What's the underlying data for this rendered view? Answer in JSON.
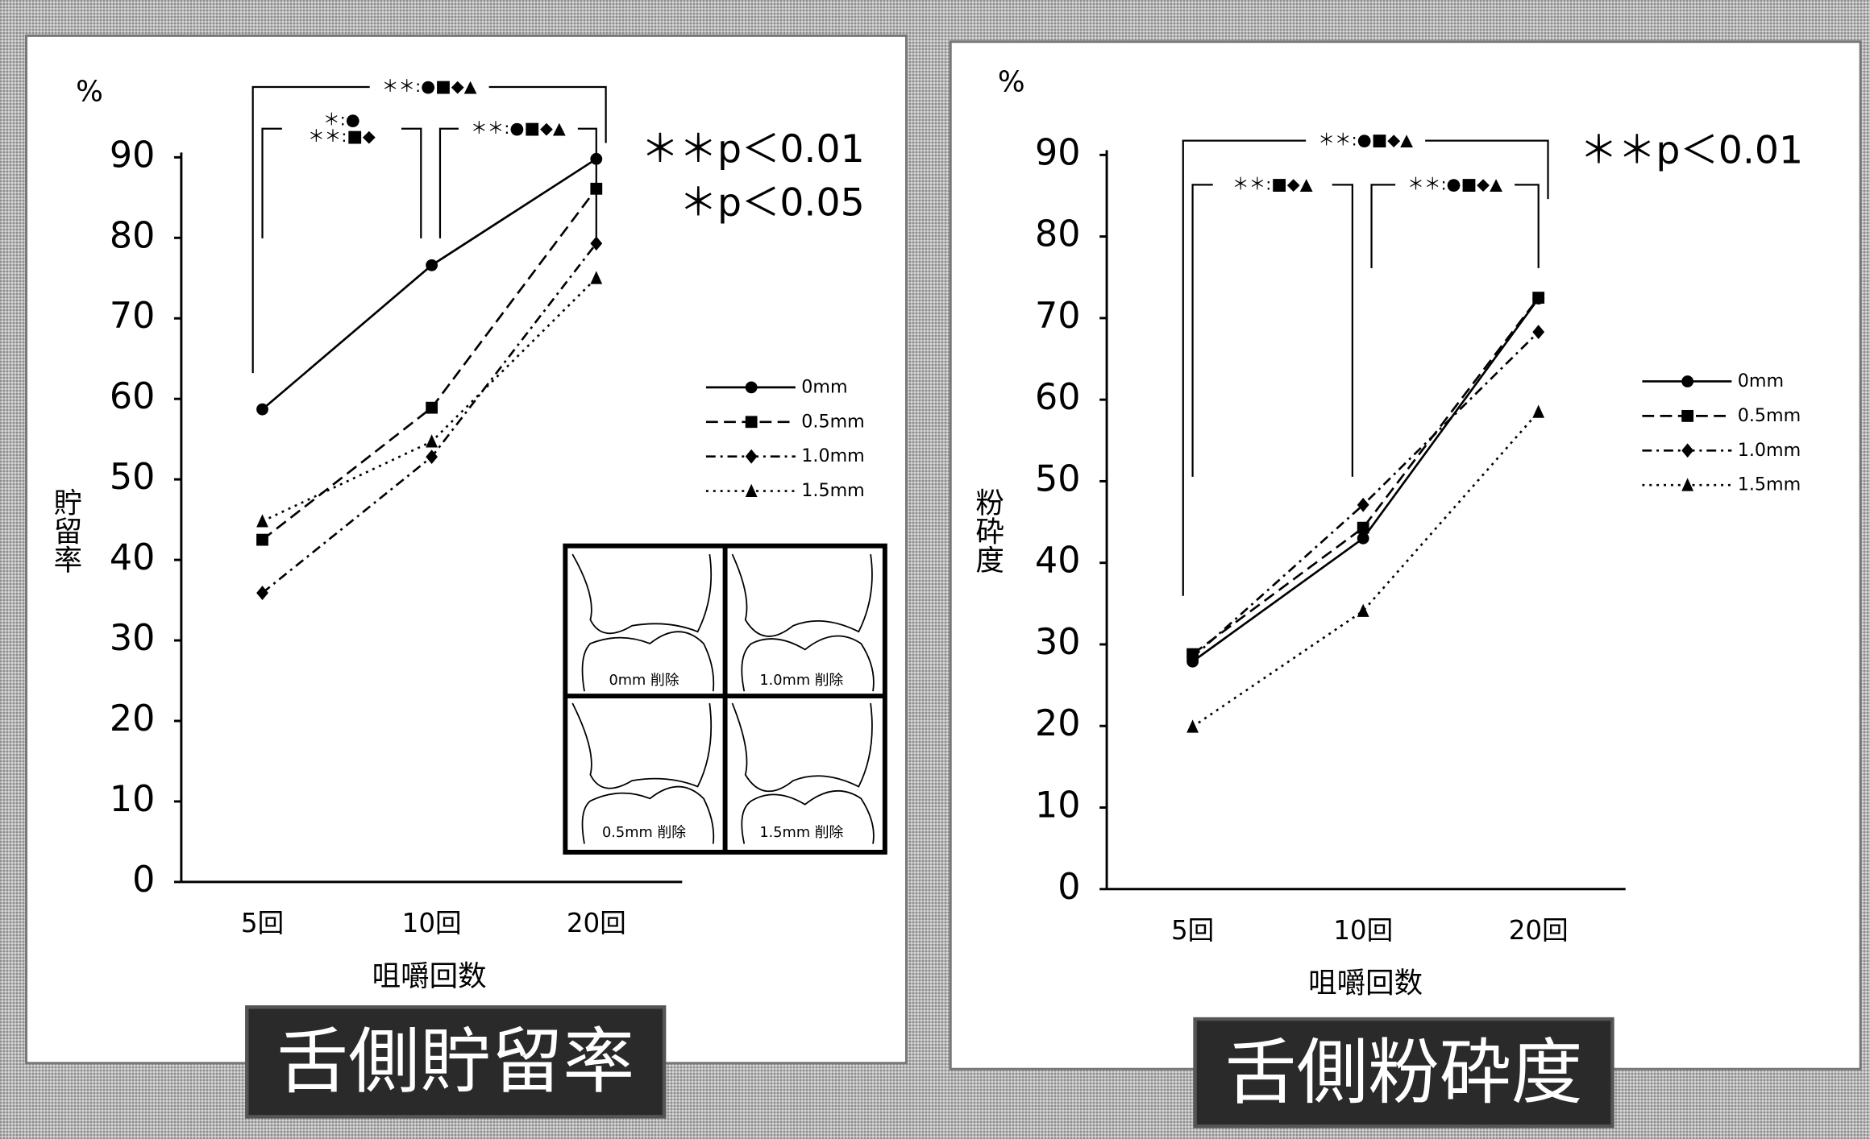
{
  "chart_data": [
    {
      "type": "line",
      "title": "舌側貯留率",
      "y_label": "貯留率",
      "x_label": "咀嚼回数",
      "unit": "%",
      "categories": [
        "5回",
        "10回",
        "20回"
      ],
      "ylim": [
        0,
        90
      ],
      "yticks": [
        0,
        10,
        20,
        30,
        40,
        50,
        60,
        70,
        80,
        90
      ],
      "series": [
        {
          "name": "0mm",
          "color": "#000000",
          "marker": "circle",
          "dash": "none",
          "values": [
            58.7,
            76.6,
            89.8
          ]
        },
        {
          "name": "0.5mm",
          "color": "#000000",
          "marker": "square",
          "dash": "10 5",
          "values": [
            42.5,
            58.9,
            86.1
          ]
        },
        {
          "name": "1.0mm",
          "color": "#000000",
          "marker": "diamond",
          "dash": "8 4 2 4",
          "values": [
            35.9,
            52.8,
            79.3
          ]
        },
        {
          "name": "1.5mm",
          "color": "#000000",
          "marker": "triangle",
          "dash": "2 4",
          "values": [
            44.8,
            54.7,
            75.0
          ]
        }
      ],
      "annotations": [
        "＊＊p＜0.01",
        "＊p＜0.05"
      ],
      "brackets": [
        {
          "between": [
            "5回",
            "20回"
          ],
          "labels": [
            "＊＊:●■◆▲"
          ]
        },
        {
          "between": [
            "5回",
            "10回"
          ],
          "labels": [
            "＊:●",
            "＊＊:■◆"
          ]
        },
        {
          "between": [
            "10回",
            "20回"
          ],
          "labels": [
            "＊＊:●■◆▲"
          ]
        }
      ],
      "inset_labels": [
        "0mm 削除",
        "1.0mm 削除",
        "0.5mm 削除",
        "1.5mm 削除"
      ]
    },
    {
      "type": "line",
      "title": "舌側粉砕度",
      "y_label": "粉砕度",
      "x_label": "咀嚼回数",
      "unit": "%",
      "categories": [
        "5回",
        "10回",
        "20回"
      ],
      "ylim": [
        0,
        90
      ],
      "yticks": [
        0,
        10,
        20,
        30,
        40,
        50,
        60,
        70,
        80,
        90
      ],
      "series": [
        {
          "name": "0mm",
          "color": "#000000",
          "marker": "circle",
          "dash": "none",
          "values": [
            27.9,
            43.0,
            72.4
          ]
        },
        {
          "name": "0.5mm",
          "color": "#000000",
          "marker": "square",
          "dash": "10 5",
          "values": [
            28.8,
            44.3,
            72.5
          ]
        },
        {
          "name": "1.0mm",
          "color": "#000000",
          "marker": "diamond",
          "dash": "8 4 2 4",
          "values": [
            28.4,
            47.1,
            68.3
          ]
        },
        {
          "name": "1.5mm",
          "color": "#000000",
          "marker": "triangle",
          "dash": "2 4",
          "values": [
            19.9,
            34.1,
            58.5
          ]
        }
      ],
      "annotations": [
        "＊＊p＜0.01"
      ],
      "brackets": [
        {
          "between": [
            "5回",
            "20回"
          ],
          "labels": [
            "＊＊:●■◆▲"
          ]
        },
        {
          "between": [
            "5回",
            "10回"
          ],
          "labels": [
            "＊＊:■◆▲"
          ]
        },
        {
          "between": [
            "10回",
            "20回"
          ],
          "labels": [
            "＊＊:●■◆▲"
          ]
        }
      ]
    }
  ]
}
